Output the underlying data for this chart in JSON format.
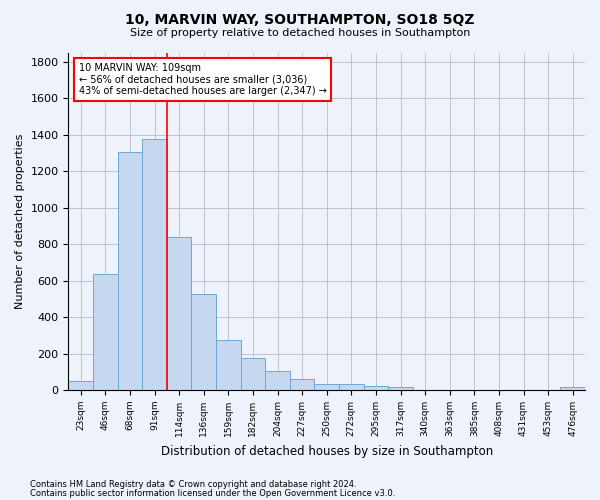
{
  "title1": "10, MARVIN WAY, SOUTHAMPTON, SO18 5QZ",
  "title2": "Size of property relative to detached houses in Southampton",
  "xlabel": "Distribution of detached houses by size in Southampton",
  "ylabel": "Number of detached properties",
  "categories": [
    "23sqm",
    "46sqm",
    "68sqm",
    "91sqm",
    "114sqm",
    "136sqm",
    "159sqm",
    "182sqm",
    "204sqm",
    "227sqm",
    "250sqm",
    "272sqm",
    "295sqm",
    "317sqm",
    "340sqm",
    "363sqm",
    "385sqm",
    "408sqm",
    "431sqm",
    "453sqm",
    "476sqm"
  ],
  "values": [
    50,
    635,
    1305,
    1375,
    840,
    525,
    275,
    175,
    105,
    60,
    35,
    35,
    25,
    15,
    0,
    0,
    0,
    0,
    0,
    0,
    15
  ],
  "bar_color": "#c5d8f0",
  "bar_edge_color": "#6aaad4",
  "vline_x_index": 4,
  "vline_color": "red",
  "annotation_text": "10 MARVIN WAY: 109sqm\n← 56% of detached houses are smaller (3,036)\n43% of semi-detached houses are larger (2,347) →",
  "annotation_box_color": "white",
  "annotation_border_color": "red",
  "ylim": [
    0,
    1850
  ],
  "yticks": [
    0,
    200,
    400,
    600,
    800,
    1000,
    1200,
    1400,
    1600,
    1800
  ],
  "footer1": "Contains HM Land Registry data © Crown copyright and database right 2024.",
  "footer2": "Contains public sector information licensed under the Open Government Licence v3.0.",
  "bg_color": "#eef2fa",
  "plot_bg_color": "#eef2fa",
  "grid_color": "#bbbbcc"
}
